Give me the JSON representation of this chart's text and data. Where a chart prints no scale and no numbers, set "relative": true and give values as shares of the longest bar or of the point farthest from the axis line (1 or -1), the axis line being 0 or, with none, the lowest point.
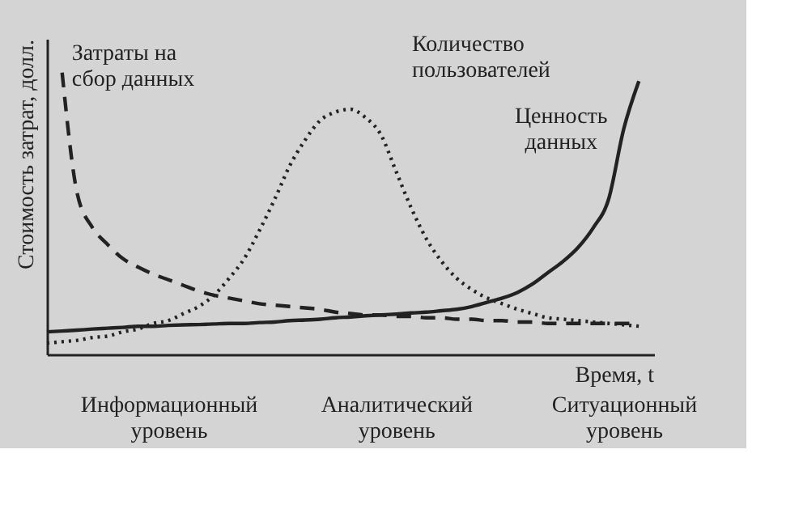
{
  "chart_data": {
    "type": "line",
    "relative": true,
    "xlabel": "Время, t",
    "ylabel": "Стоимость затрат, долл.",
    "categories": [
      null,
      null,
      null,
      null,
      null,
      null,
      null,
      null,
      "Информационный уровень",
      null,
      null,
      null,
      null,
      null,
      null,
      null,
      null,
      null,
      null,
      null,
      null,
      null,
      null,
      "Аналитический уровень",
      null,
      null,
      null,
      null,
      null,
      null,
      null,
      null,
      null,
      null,
      null,
      null,
      null,
      null,
      "Ситуационный уровень",
      null,
      null
    ],
    "series": [
      {
        "name": "Затраты на\nсбор данных",
        "color": "#222222",
        "line_style": "dashed",
        "values": [
          null,
          1,
          0.57,
          0.45,
          0.39,
          0.34,
          0.31,
          0.285,
          0.265,
          0.245,
          0.225,
          0.21,
          0.2,
          0.19,
          0.18,
          0.175,
          0.17,
          0.165,
          0.16,
          0.15,
          0.145,
          0.14,
          0.14,
          0.135,
          0.135,
          0.13,
          0.13,
          0.125,
          0.125,
          0.12,
          0.12,
          0.115,
          0.115,
          0.11,
          0.11,
          0.11,
          0.11,
          0.11,
          0.11,
          0.11,
          null
        ]
      },
      {
        "name": "Количество\nпользователей",
        "color": "#222222",
        "line_style": "dotted",
        "values": [
          0.04,
          0.045,
          0.05,
          0.06,
          0.065,
          0.08,
          0.09,
          0.11,
          0.12,
          0.145,
          0.17,
          0.21,
          0.27,
          0.34,
          0.44,
          0.55,
          0.67,
          0.76,
          0.83,
          0.86,
          0.87,
          0.84,
          0.78,
          0.65,
          0.52,
          0.41,
          0.33,
          0.27,
          0.23,
          0.2,
          0.18,
          0.16,
          0.145,
          0.13,
          0.125,
          0.12,
          0.115,
          0.11,
          0.105,
          0.1,
          null
        ]
      },
      {
        "name": "Ценность\nданных",
        "color": "#222222",
        "line_style": "solid",
        "values": [
          0.08,
          0.083,
          0.086,
          0.09,
          0.093,
          0.096,
          0.1,
          0.1,
          0.103,
          0.105,
          0.106,
          0.108,
          0.11,
          0.11,
          0.113,
          0.115,
          0.12,
          0.122,
          0.125,
          0.13,
          0.133,
          0.137,
          0.14,
          0.143,
          0.147,
          0.15,
          0.155,
          0.16,
          0.17,
          0.185,
          0.2,
          0.22,
          0.25,
          0.29,
          0.33,
          0.38,
          0.45,
          0.55,
          0.8,
          0.97,
          null
        ]
      }
    ]
  }
}
